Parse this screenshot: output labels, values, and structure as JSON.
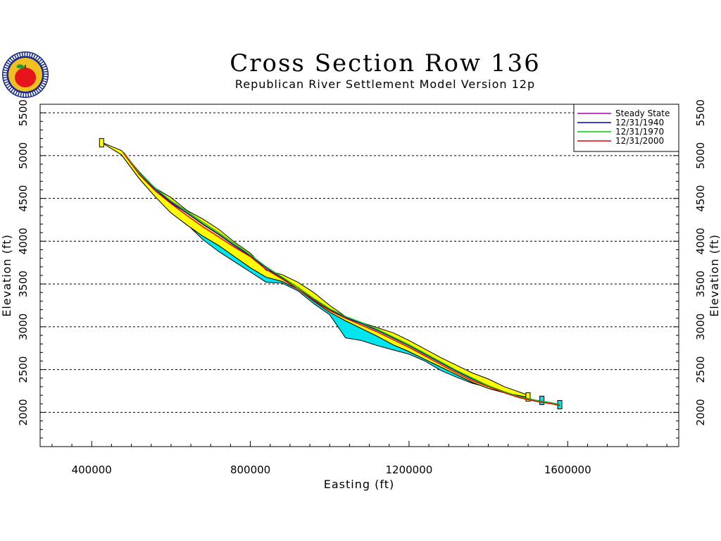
{
  "header": {
    "title": "Cross Section Row 136",
    "subtitle": "Republican River Settlement Model Version 12p"
  },
  "logo": {
    "icon": "apple-seal-logo",
    "colors": {
      "ring": "#1a2a8c",
      "apple": "#e8141c",
      "leaf": "#2a9a2a",
      "field": "#f0c020"
    }
  },
  "chart_data": {
    "type": "line",
    "title": "Cross Section Row 136",
    "subtitle": "Republican River Settlement Model Version 12p",
    "xlabel": "Easting (ft)",
    "ylabel": "Elevation (ft)",
    "ylabel_right": "Elevation (ft)",
    "xlim": [
      270000,
      1880000
    ],
    "ylim": [
      1600,
      5600
    ],
    "xticks": [
      400000,
      800000,
      1200000,
      1600000
    ],
    "xtick_labels": [
      "400000",
      "800000",
      "1200000",
      "1600000"
    ],
    "yticks": [
      2000,
      2500,
      3000,
      3500,
      4000,
      4500,
      5000,
      5500
    ],
    "ytick_labels": [
      "2000",
      "2500",
      "3000",
      "3500",
      "4000",
      "4500",
      "5000",
      "5500"
    ],
    "grid": "horizontal dashed at major y ticks",
    "legend_position": "top-right",
    "colors": {
      "upper_layer": "#ffff00",
      "lower_layer": "#00e5ee",
      "grid": "#000000"
    },
    "upper_layer_top": {
      "x": [
        422000,
        428000,
        475000,
        520000,
        560000,
        600000,
        640000,
        680000,
        720000,
        760000,
        800000,
        840000,
        880000,
        920000,
        960000,
        1000000,
        1040000,
        1080000,
        1120000,
        1160000,
        1200000,
        1240000,
        1280000,
        1320000,
        1360000,
        1400000,
        1440000,
        1495000
      ],
      "y": [
        5160,
        5150,
        5060,
        4810,
        4620,
        4510,
        4360,
        4260,
        4140,
        3990,
        3860,
        3660,
        3610,
        3520,
        3400,
        3250,
        3120,
        3050,
        2990,
        2930,
        2840,
        2740,
        2640,
        2550,
        2460,
        2390,
        2300,
        2210
      ]
    },
    "upper_layer_bottom": {
      "x": [
        475000,
        520000,
        560000,
        600000,
        640000,
        680000,
        720000,
        760000,
        800000,
        840000,
        880000,
        920000,
        960000,
        1000000,
        1040000,
        1080000,
        1120000,
        1160000,
        1200000,
        1240000,
        1280000,
        1320000,
        1360000,
        1400000,
        1440000,
        1495000
      ],
      "y": [
        5010,
        4730,
        4520,
        4330,
        4190,
        4060,
        3950,
        3820,
        3690,
        3580,
        3530,
        3440,
        3300,
        3170,
        3070,
        2980,
        2890,
        2790,
        2710,
        2620,
        2530,
        2440,
        2350,
        2280,
        2230,
        2180
      ]
    },
    "lower_layer_bottom": {
      "x": [
        560000,
        600000,
        640000,
        680000,
        720000,
        760000,
        800000,
        840000,
        880000,
        920000,
        960000,
        1000000,
        1040000,
        1080000,
        1120000,
        1160000,
        1200000,
        1240000,
        1280000,
        1320000,
        1360000,
        1400000
      ],
      "y": [
        4520,
        4400,
        4200,
        4020,
        3880,
        3760,
        3640,
        3520,
        3510,
        3420,
        3270,
        3140,
        2870,
        2840,
        2780,
        2730,
        2680,
        2600,
        2490,
        2410,
        2340,
        2290
      ]
    },
    "series": [
      {
        "name": "Steady State",
        "color": "#b000b0",
        "x": [
          480000,
          520000,
          560000,
          600000,
          640000,
          680000,
          720000,
          760000,
          800000,
          840000,
          880000,
          920000,
          960000,
          1000000,
          1040000,
          1080000,
          1120000,
          1160000,
          1200000,
          1240000,
          1280000,
          1320000,
          1360000,
          1400000,
          1440000,
          1480000,
          1520000,
          1560000,
          1580000
        ],
        "y": [
          5040,
          4790,
          4610,
          4460,
          4330,
          4200,
          4080,
          3950,
          3830,
          3690,
          3570,
          3460,
          3320,
          3200,
          3110,
          3040,
          2960,
          2870,
          2780,
          2680,
          2580,
          2480,
          2390,
          2310,
          2240,
          2180,
          2140,
          2110,
          2090
        ]
      },
      {
        "name": "12/31/1940",
        "color": "#0000cc",
        "x": [
          480000,
          520000,
          560000,
          600000,
          640000,
          680000,
          720000,
          760000,
          800000,
          840000,
          880000,
          920000,
          960000,
          1000000,
          1040000,
          1080000,
          1120000,
          1160000,
          1200000,
          1240000,
          1280000,
          1320000,
          1360000,
          1400000,
          1440000,
          1480000,
          1520000,
          1560000,
          1580000
        ],
        "y": [
          5040,
          4790,
          4610,
          4450,
          4330,
          4200,
          4080,
          3950,
          3830,
          3690,
          3570,
          3460,
          3320,
          3200,
          3110,
          3040,
          2960,
          2870,
          2780,
          2680,
          2580,
          2480,
          2390,
          2310,
          2240,
          2180,
          2140,
          2110,
          2090
        ]
      },
      {
        "name": "12/31/1970",
        "color": "#00cc00",
        "x": [
          480000,
          520000,
          560000,
          600000,
          640000,
          680000,
          720000,
          760000,
          800000,
          840000,
          880000,
          920000,
          960000,
          1000000,
          1040000,
          1080000,
          1120000,
          1160000,
          1200000,
          1240000,
          1280000,
          1320000,
          1360000,
          1400000,
          1440000,
          1480000,
          1520000,
          1560000,
          1580000
        ],
        "y": [
          5040,
          4800,
          4620,
          4470,
          4350,
          4220,
          4100,
          3970,
          3840,
          3700,
          3580,
          3460,
          3330,
          3210,
          3120,
          3050,
          2970,
          2880,
          2790,
          2690,
          2590,
          2490,
          2400,
          2310,
          2240,
          2180,
          2140,
          2110,
          2090
        ]
      },
      {
        "name": "12/31/2000",
        "color": "#ee0000",
        "x": [
          480000,
          520000,
          560000,
          600000,
          640000,
          680000,
          720000,
          760000,
          800000,
          840000,
          880000,
          920000,
          960000,
          1000000,
          1040000,
          1080000,
          1120000,
          1160000,
          1200000,
          1240000,
          1280000,
          1320000,
          1360000,
          1400000,
          1440000,
          1480000,
          1520000,
          1560000,
          1580000
        ],
        "y": [
          5030,
          4780,
          4590,
          4440,
          4300,
          4170,
          4050,
          3930,
          3820,
          3670,
          3560,
          3440,
          3310,
          3190,
          3100,
          3020,
          2940,
          2850,
          2760,
          2660,
          2560,
          2460,
          2370,
          2300,
          2230,
          2170,
          2130,
          2100,
          2080
        ]
      }
    ],
    "isolated_blocks": [
      {
        "x": 425000,
        "y": 5150,
        "color": "#ffff00"
      },
      {
        "x": 1500000,
        "y": 2180,
        "color": "#ffff00"
      },
      {
        "x": 1535000,
        "y": 2140,
        "color": "#00e5ee"
      },
      {
        "x": 1580000,
        "y": 2090,
        "color": "#00e5ee"
      }
    ]
  }
}
